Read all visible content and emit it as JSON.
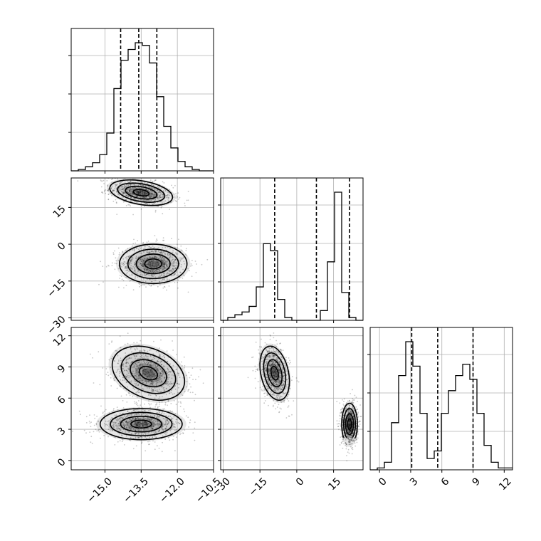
{
  "chart_data": {
    "type": "corner",
    "parameters": [
      {
        "range": [
          -16.4,
          -10.5
        ],
        "ticks": [
          -15.0,
          -13.5,
          -12.0,
          -10.5
        ],
        "tick_labels": [
          "−15.0",
          "−13.5",
          "−12.0",
          "−10.5"
        ],
        "quantiles": [
          -14.35,
          -13.6,
          -12.85
        ],
        "histogram": {
          "bin_start": -16.4,
          "bin_width": 0.295,
          "counts": [
            0,
            0.01,
            0.03,
            0.06,
            0.12,
            0.28,
            0.61,
            0.82,
            0.9,
            0.95,
            0.93,
            0.8,
            0.55,
            0.33,
            0.17,
            0.07,
            0.03,
            0.01,
            0,
            0
          ]
        }
      },
      {
        "range": [
          -31,
          27
        ],
        "ticks": [
          -30,
          -15,
          0,
          15
        ],
        "tick_labels": [
          "−30",
          "−15",
          "0",
          "15"
        ],
        "quantiles": [
          -9,
          8,
          21.5
        ],
        "histogram": {
          "bin_start": -31,
          "bin_width": 2.9,
          "counts": [
            0,
            0.02,
            0.04,
            0.06,
            0.1,
            0.24,
            0.55,
            0.5,
            0.15,
            0.02,
            0,
            0,
            0,
            0,
            0.07,
            0.42,
            0.92,
            0.2,
            0.02,
            0
          ]
        }
      },
      {
        "range": [
          -0.9,
          12.8
        ],
        "ticks": [
          0,
          3,
          6,
          9,
          12
        ],
        "tick_labels": [
          "0",
          "3",
          "6",
          "9",
          "12"
        ],
        "quantiles": [
          3.1,
          5.6,
          9.0
        ],
        "histogram": {
          "bin_start": -0.9,
          "bin_width": 0.685,
          "counts": [
            0,
            0.01,
            0.04,
            0.25,
            0.5,
            0.68,
            0.55,
            0.3,
            0.06,
            0.1,
            0.3,
            0.42,
            0.5,
            0.56,
            0.48,
            0.3,
            0.13,
            0.04,
            0.01,
            0.01
          ]
        }
      }
    ],
    "pairs": [
      {
        "x_param": 0,
        "y_param": 1,
        "clusters": [
          {
            "cx": -13.5,
            "cy": 21,
            "sx": 0.65,
            "sy": 2.6,
            "rho": -0.35,
            "n": 900
          },
          {
            "cx": -13.0,
            "cy": -8,
            "sx": 0.7,
            "sy": 4.0,
            "rho": 0.0,
            "n": 900
          }
        ]
      },
      {
        "x_param": 0,
        "y_param": 2,
        "clusters": [
          {
            "cx": -13.2,
            "cy": 8.4,
            "sx": 0.75,
            "sy": 1.3,
            "rho": -0.3,
            "n": 900
          },
          {
            "cx": -13.5,
            "cy": 3.5,
            "sx": 0.85,
            "sy": 0.75,
            "rho": 0.0,
            "n": 900
          }
        ]
      },
      {
        "x_param": 1,
        "y_param": 2,
        "clusters": [
          {
            "cx": -9,
            "cy": 8.4,
            "sx": 3.0,
            "sy": 1.3,
            "rho": -0.3,
            "n": 900
          },
          {
            "cx": 21.5,
            "cy": 3.5,
            "sx": 1.6,
            "sy": 1.0,
            "rho": 0.0,
            "n": 900
          }
        ]
      }
    ],
    "contour_levels_sigma": [
      0.5,
      1.0,
      1.5,
      2.0
    ],
    "grid": true
  }
}
